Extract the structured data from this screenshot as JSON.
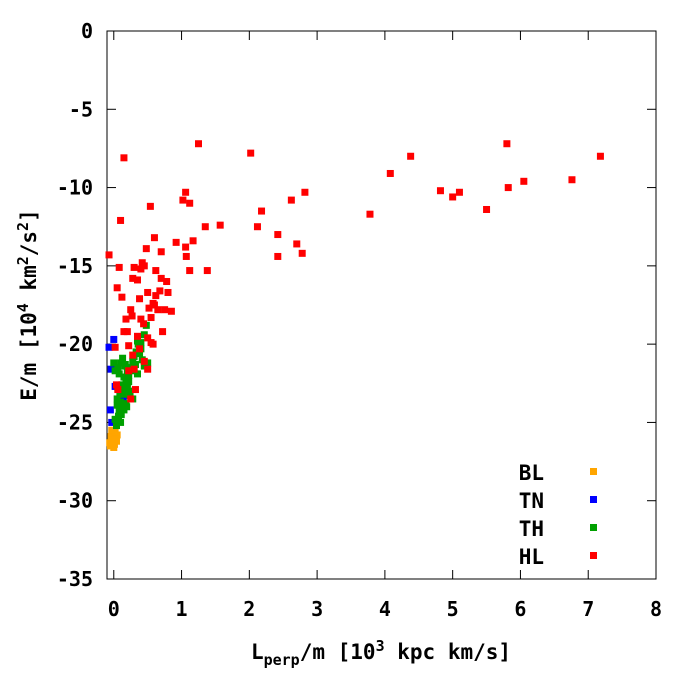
{
  "chart_data": {
    "type": "scatter",
    "title": "",
    "xlabel": {
      "main": "L",
      "sub": "perp",
      "rest": "/m [10",
      "sup": "3",
      "tail": " kpc km/s]"
    },
    "ylabel": {
      "main": "E/m [10",
      "sup1": "4",
      "mid": " km",
      "sup2": "2",
      "mid2": "/s",
      "sup3": "2",
      "tail": "]"
    },
    "xlim": [
      -0.1,
      8
    ],
    "ylim": [
      -35,
      0
    ],
    "xticks": [
      0,
      1,
      2,
      3,
      4,
      5,
      6,
      7,
      8
    ],
    "xtick_labels": [
      "0",
      "1",
      "2",
      "3",
      "4",
      "5",
      "6",
      "7",
      "8"
    ],
    "yticks": [
      0,
      -5,
      -10,
      -15,
      -20,
      -25,
      -30,
      -35
    ],
    "ytick_labels": [
      "0",
      "-5",
      "-10",
      "-15",
      "-20",
      "-25",
      "-30",
      "-35"
    ],
    "grid": false,
    "legend_position": "bottom-right",
    "series": [
      {
        "name": "BL",
        "color": "#ffa500",
        "points": [
          [
            -0.06,
            -26.3
          ],
          [
            -0.04,
            -25.9
          ],
          [
            -0.02,
            -26.1
          ],
          [
            0.0,
            -25.7
          ],
          [
            0.01,
            -26.4
          ],
          [
            0.03,
            -26.0
          ],
          [
            0.05,
            -25.8
          ],
          [
            -0.05,
            -26.5
          ],
          [
            0.02,
            -25.6
          ],
          [
            0.04,
            -26.2
          ],
          [
            -0.03,
            -25.5
          ],
          [
            0.0,
            -26.6
          ]
        ]
      },
      {
        "name": "TN",
        "color": "#0000ff",
        "points": [
          [
            -0.05,
            -24.2
          ],
          [
            -0.03,
            -25.0
          ],
          [
            -0.04,
            -21.6
          ],
          [
            -0.07,
            -20.2
          ],
          [
            0.0,
            -19.7
          ],
          [
            0.12,
            -23.2
          ],
          [
            0.14,
            -23.6
          ],
          [
            0.02,
            -22.7
          ]
        ]
      },
      {
        "name": "TH",
        "color": "#00a000",
        "points": [
          [
            0.05,
            -23.9
          ],
          [
            0.08,
            -24.3
          ],
          [
            0.1,
            -23.7
          ],
          [
            0.12,
            -24.1
          ],
          [
            0.15,
            -24.2
          ],
          [
            0.18,
            -23.8
          ],
          [
            0.07,
            -24.6
          ],
          [
            0.1,
            -25.0
          ],
          [
            0.04,
            -25.2
          ],
          [
            0.02,
            -24.8
          ],
          [
            0.14,
            -23.2
          ],
          [
            0.16,
            -22.9
          ],
          [
            0.2,
            -22.5
          ],
          [
            0.22,
            -22.0
          ],
          [
            0.18,
            -22.2
          ],
          [
            0.12,
            -22.6
          ],
          [
            0.08,
            -21.9
          ],
          [
            0.06,
            -21.5
          ],
          [
            0.1,
            -21.2
          ],
          [
            0.13,
            -20.9
          ],
          [
            0.16,
            -21.4
          ],
          [
            0.2,
            -21.8
          ],
          [
            0.25,
            -21.5
          ],
          [
            0.28,
            -21.1
          ],
          [
            0.3,
            -21.6
          ],
          [
            0.35,
            -21.9
          ],
          [
            0.32,
            -21.3
          ],
          [
            0.38,
            -20.6
          ],
          [
            0.4,
            -20.3
          ],
          [
            0.42,
            -21.0
          ],
          [
            0.45,
            -21.4
          ],
          [
            0.5,
            -21.2
          ],
          [
            0.35,
            -19.8
          ],
          [
            0.36,
            -20.0
          ],
          [
            0.25,
            -21.7
          ],
          [
            0.22,
            -22.4
          ],
          [
            0.2,
            -22.8
          ],
          [
            0.24,
            -23.3
          ],
          [
            0.28,
            -23.5
          ],
          [
            0.0,
            -21.2
          ],
          [
            0.02,
            -21.7
          ],
          [
            0.3,
            -20.8
          ],
          [
            0.33,
            -20.5
          ],
          [
            0.45,
            -19.4
          ],
          [
            0.48,
            -18.8
          ],
          [
            0.4,
            -19.9
          ],
          [
            0.15,
            -22.1
          ],
          [
            0.17,
            -21.3
          ],
          [
            0.05,
            -23.5
          ],
          [
            0.09,
            -23.1
          ],
          [
            0.06,
            -22.8
          ],
          [
            0.11,
            -24.5
          ],
          [
            0.19,
            -24.0
          ],
          [
            0.23,
            -23.0
          ]
        ]
      },
      {
        "name": "HL",
        "color": "#ff0000",
        "points": [
          [
            0.02,
            -20.2
          ],
          [
            0.05,
            -16.4
          ],
          [
            0.08,
            -15.1
          ],
          [
            0.1,
            -12.1
          ],
          [
            0.12,
            -17.0
          ],
          [
            0.15,
            -19.2
          ],
          [
            0.18,
            -18.4
          ],
          [
            0.2,
            -19.2
          ],
          [
            0.22,
            -20.1
          ],
          [
            0.25,
            -17.8
          ],
          [
            0.27,
            -18.2
          ],
          [
            0.28,
            -15.8
          ],
          [
            0.3,
            -15.1
          ],
          [
            0.35,
            -15.9
          ],
          [
            0.38,
            -17.1
          ],
          [
            0.4,
            -15.2
          ],
          [
            0.42,
            -14.8
          ],
          [
            0.45,
            -15.0
          ],
          [
            0.48,
            -13.9
          ],
          [
            0.5,
            -16.7
          ],
          [
            0.52,
            -17.7
          ],
          [
            0.55,
            -18.3
          ],
          [
            0.58,
            -17.4
          ],
          [
            0.6,
            -17.5
          ],
          [
            0.62,
            -16.9
          ],
          [
            0.65,
            -17.8
          ],
          [
            0.68,
            -16.6
          ],
          [
            0.7,
            -15.8
          ],
          [
            0.75,
            -17.8
          ],
          [
            0.78,
            -16.0
          ],
          [
            0.8,
            -16.7
          ],
          [
            0.85,
            -17.9
          ],
          [
            0.6,
            -13.2
          ],
          [
            0.62,
            -15.3
          ],
          [
            0.7,
            -14.1
          ],
          [
            0.54,
            -11.2
          ],
          [
            0.4,
            -18.4
          ],
          [
            0.44,
            -18.7
          ],
          [
            0.5,
            -19.6
          ],
          [
            0.55,
            -19.9
          ],
          [
            0.3,
            -21.6
          ],
          [
            0.38,
            -20.3
          ],
          [
            0.45,
            -21.1
          ],
          [
            0.5,
            -21.6
          ],
          [
            0.32,
            -22.9
          ],
          [
            0.25,
            -23.5
          ],
          [
            0.22,
            -21.7
          ],
          [
            0.58,
            -20.0
          ],
          [
            0.72,
            -19.2
          ],
          [
            0.92,
            -13.5
          ],
          [
            1.02,
            -10.8
          ],
          [
            1.06,
            -10.3
          ],
          [
            1.12,
            -11.0
          ],
          [
            1.07,
            -14.4
          ],
          [
            1.06,
            -13.8
          ],
          [
            1.12,
            -15.3
          ],
          [
            1.17,
            -13.4
          ],
          [
            1.25,
            -7.2
          ],
          [
            1.35,
            -12.5
          ],
          [
            1.38,
            -15.3
          ],
          [
            1.57,
            -12.4
          ],
          [
            2.02,
            -7.8
          ],
          [
            2.12,
            -12.5
          ],
          [
            2.18,
            -11.5
          ],
          [
            2.42,
            -13.0
          ],
          [
            2.42,
            -14.4
          ],
          [
            2.62,
            -10.8
          ],
          [
            2.7,
            -13.6
          ],
          [
            2.78,
            -14.2
          ],
          [
            2.82,
            -10.3
          ],
          [
            3.78,
            -11.7
          ],
          [
            4.08,
            -9.1
          ],
          [
            4.38,
            -8.0
          ],
          [
            4.82,
            -10.2
          ],
          [
            5.0,
            -10.6
          ],
          [
            5.1,
            -10.3
          ],
          [
            5.5,
            -11.4
          ],
          [
            5.8,
            -7.2
          ],
          [
            5.82,
            -10.0
          ],
          [
            6.05,
            -9.6
          ],
          [
            6.76,
            -9.5
          ],
          [
            7.18,
            -8.0
          ],
          [
            0.15,
            -8.1
          ],
          [
            -0.07,
            -14.3
          ],
          [
            0.06,
            -22.9
          ],
          [
            0.04,
            -22.6
          ],
          [
            0.28,
            -20.7
          ],
          [
            0.35,
            -19.5
          ]
        ]
      }
    ]
  }
}
